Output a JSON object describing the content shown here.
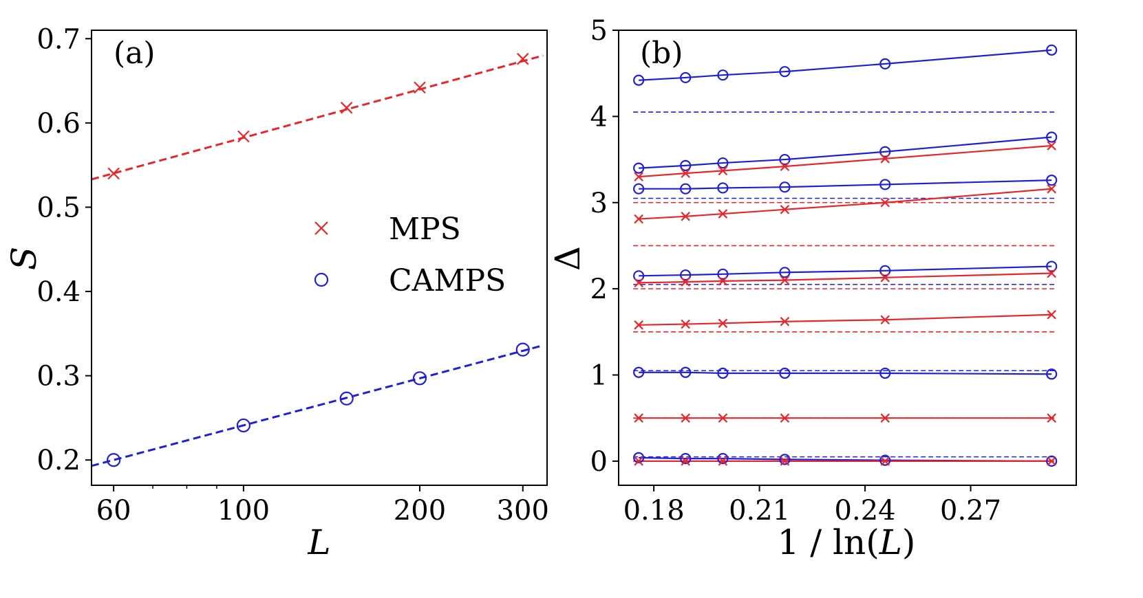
{
  "colors": {
    "mps": "#e8262a",
    "camps": "#1f1fd6",
    "axis": "#000000"
  },
  "chart_data": [
    {
      "type": "scatter",
      "panel": "(a)",
      "xlabel": "L",
      "ylabel": "S",
      "xscale": "log",
      "xlim": [
        55,
        330
      ],
      "ylim": [
        0.17,
        0.71
      ],
      "xticks": [
        60,
        100,
        200,
        300
      ],
      "xtick_labels": [
        "60",
        "100",
        "200",
        "300"
      ],
      "yticks": [
        0.2,
        0.3,
        0.4,
        0.5,
        0.6,
        0.7
      ],
      "ytick_labels": [
        "0.2",
        "0.3",
        "0.4",
        "0.5",
        "0.6",
        "0.7"
      ],
      "legend": {
        "position": "center-right",
        "entries": [
          {
            "name": "MPS",
            "marker": "x",
            "color": "mps"
          },
          {
            "name": "CAMPS",
            "marker": "o",
            "color": "camps"
          }
        ]
      },
      "series": [
        {
          "name": "MPS",
          "marker": "x",
          "color": "mps",
          "x": [
            60,
            100,
            150,
            200,
            300
          ],
          "y": [
            0.54,
            0.584,
            0.618,
            0.642,
            0.676
          ],
          "fit_x": [
            55,
            325
          ],
          "fit_y": [
            0.533,
            0.68
          ]
        },
        {
          "name": "CAMPS",
          "marker": "o",
          "color": "camps",
          "x": [
            60,
            100,
            150,
            200,
            300
          ],
          "y": [
            0.2,
            0.241,
            0.273,
            0.297,
            0.331
          ],
          "fit_x": [
            55,
            325
          ],
          "fit_y": [
            0.193,
            0.336
          ]
        }
      ]
    },
    {
      "type": "line",
      "panel": "(b)",
      "xlabel": "1 / ln(L)",
      "ylabel": "Δ",
      "xlim": [
        0.17,
        0.3
      ],
      "ylim": [
        -0.28,
        5.0
      ],
      "xticks": [
        0.18,
        0.21,
        0.24,
        0.27
      ],
      "xtick_labels": [
        "0.18",
        "0.21",
        "0.24",
        "0.27"
      ],
      "yticks": [
        0,
        1,
        2,
        3,
        4,
        5
      ],
      "ytick_labels": [
        "0",
        "1",
        "2",
        "3",
        "4",
        "5"
      ],
      "x": [
        0.1757,
        0.189,
        0.1996,
        0.2172,
        0.2457,
        0.293
      ],
      "reference_lines": [
        {
          "y": 4.05,
          "color": "camps"
        },
        {
          "y": 3.05,
          "color": "camps"
        },
        {
          "y": 3.0,
          "color": "mps"
        },
        {
          "y": 2.5,
          "color": "mps"
        },
        {
          "y": 2.05,
          "color": "camps"
        },
        {
          "y": 2.0,
          "color": "mps"
        },
        {
          "y": 1.5,
          "color": "mps"
        },
        {
          "y": 1.05,
          "color": "camps"
        },
        {
          "y": 0.5,
          "color": "mps"
        },
        {
          "y": 0.05,
          "color": "camps"
        },
        {
          "y": 0.0,
          "color": "mps"
        }
      ],
      "series": [
        {
          "name": "CAMPS level 1",
          "marker": "o",
          "color": "camps",
          "y": [
            4.42,
            4.45,
            4.48,
            4.52,
            4.61,
            4.77
          ]
        },
        {
          "name": "CAMPS level 2",
          "marker": "o",
          "color": "camps",
          "y": [
            3.4,
            3.43,
            3.46,
            3.5,
            3.59,
            3.76
          ]
        },
        {
          "name": "MPS level 1",
          "marker": "x",
          "color": "mps",
          "y": [
            3.3,
            3.34,
            3.37,
            3.42,
            3.51,
            3.66
          ]
        },
        {
          "name": "CAMPS level 3",
          "marker": "o",
          "color": "camps",
          "y": [
            3.16,
            3.16,
            3.17,
            3.18,
            3.21,
            3.26
          ]
        },
        {
          "name": "MPS level 2",
          "marker": "x",
          "color": "mps",
          "y": [
            2.81,
            2.84,
            2.87,
            2.92,
            3.0,
            3.16
          ]
        },
        {
          "name": "CAMPS level 4",
          "marker": "o",
          "color": "camps",
          "y": [
            2.15,
            2.16,
            2.17,
            2.19,
            2.21,
            2.26
          ]
        },
        {
          "name": "MPS level 3",
          "marker": "x",
          "color": "mps",
          "y": [
            2.07,
            2.08,
            2.09,
            2.1,
            2.13,
            2.18
          ]
        },
        {
          "name": "MPS level 4",
          "marker": "x",
          "color": "mps",
          "y": [
            1.58,
            1.59,
            1.6,
            1.62,
            1.64,
            1.7
          ]
        },
        {
          "name": "CAMPS level 5",
          "marker": "o",
          "color": "camps",
          "y": [
            1.03,
            1.03,
            1.02,
            1.02,
            1.02,
            1.01
          ]
        },
        {
          "name": "MPS level 5",
          "marker": "x",
          "color": "mps",
          "y": [
            0.5,
            0.5,
            0.5,
            0.5,
            0.5,
            0.5
          ]
        },
        {
          "name": "CAMPS level 6",
          "marker": "o",
          "color": "camps",
          "y": [
            0.04,
            0.03,
            0.03,
            0.02,
            0.01,
            0.0
          ]
        },
        {
          "name": "MPS level 6",
          "marker": "x",
          "color": "mps",
          "y": [
            0.0,
            0.0,
            0.0,
            0.0,
            0.0,
            0.0
          ]
        }
      ]
    }
  ]
}
